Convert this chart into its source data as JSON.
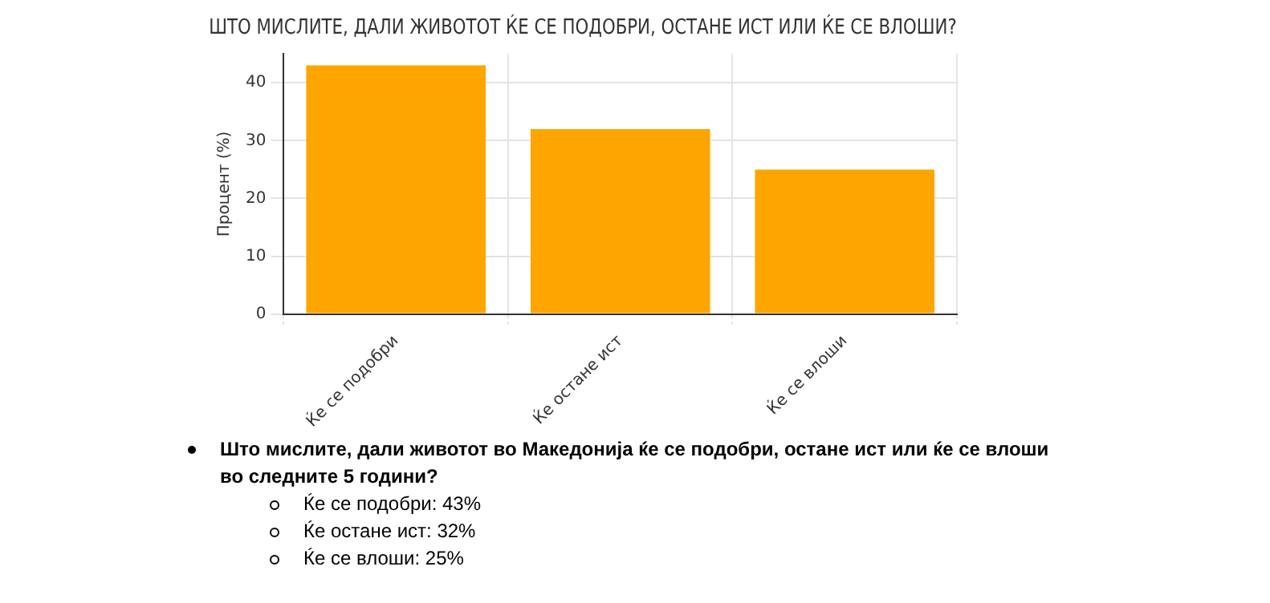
{
  "chart_data": {
    "type": "bar",
    "title": "ШТО МИСЛИТЕ, ДАЛИ ЖИВОТОТ ЌЕ СЕ ПОДОБРИ, ОСТАНЕ ИСТ ИЛИ ЌЕ СЕ ВЛОШИ?",
    "ylabel": "Процент (%)",
    "categories": [
      "Ќе се подобри",
      "Ќе остане ист",
      "Ќе се влоши"
    ],
    "values": [
      43,
      32,
      25
    ],
    "color": "#ffa500",
    "ylim": [
      0,
      45
    ],
    "yticks": [
      0,
      10,
      20,
      30,
      40
    ],
    "grid": true,
    "annotations": [
      "Што мислите, дали животот во Македонија ќе се подобри, остане ист или ќе се влоши во следните 5 години?",
      "Ќе се подобри: 43%",
      "Ќе остане ист: 32%",
      "Ќе се влоши: 25%"
    ]
  }
}
